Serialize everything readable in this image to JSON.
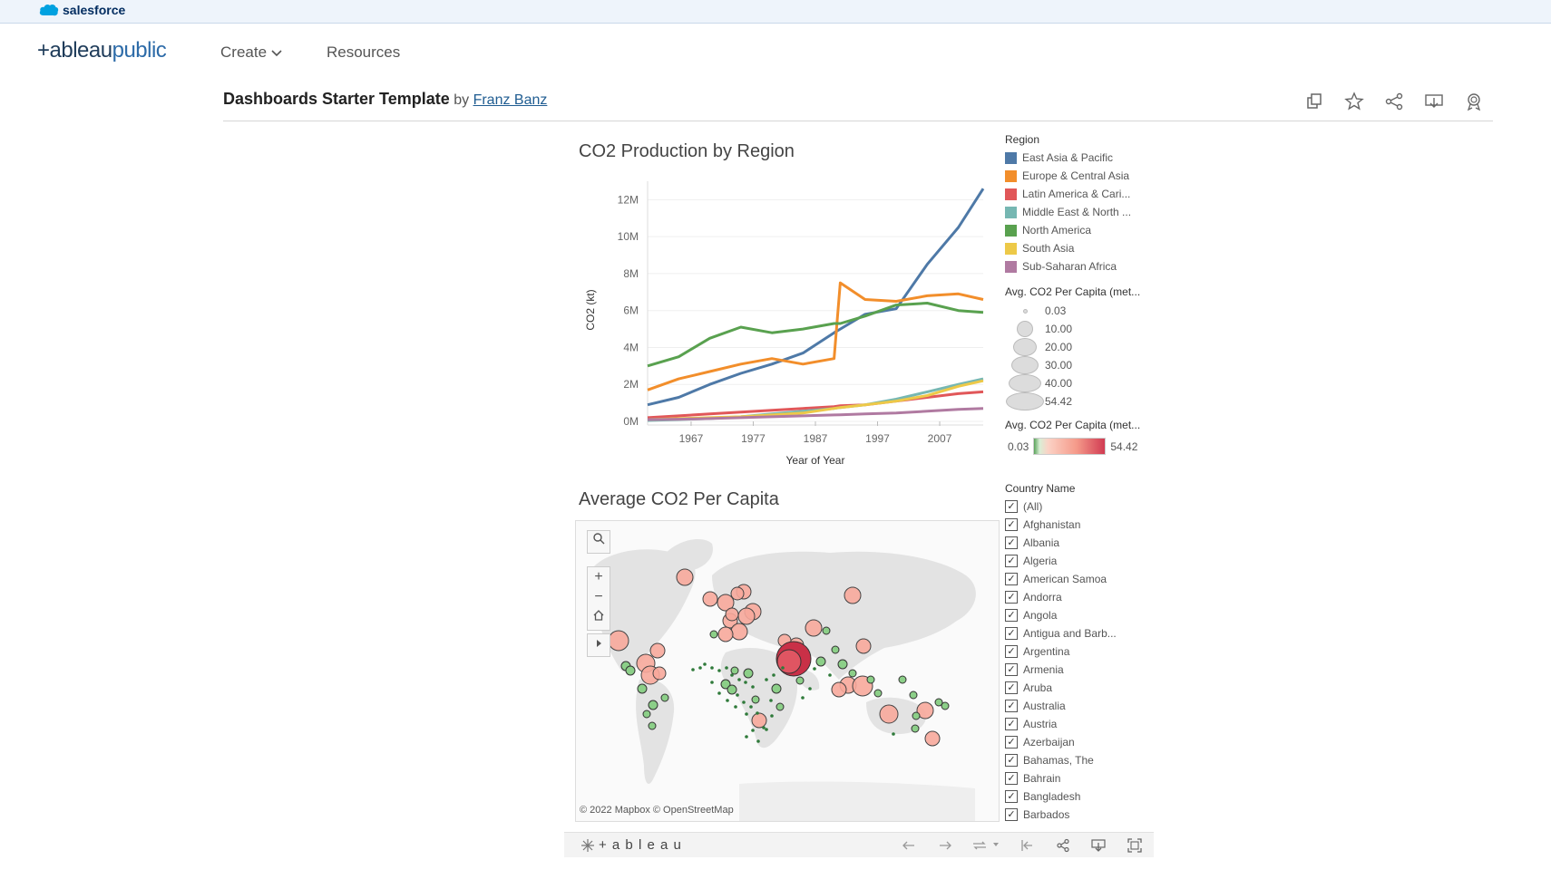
{
  "topbar": {
    "brand": "salesforce"
  },
  "nav": {
    "logo_left": "+ableau",
    "logo_right": "public",
    "create_label": "Create",
    "resources_label": "Resources"
  },
  "viz": {
    "title": "Dashboards Starter Template",
    "by": "by",
    "author": "Franz Banz"
  },
  "chart1": {
    "title": "CO2 Production by Region",
    "ylabel": "CO2 (kt)",
    "xlabel": "Year of Year",
    "yticks": [
      "12M",
      "10M",
      "8M",
      "6M",
      "4M",
      "2M",
      "0M"
    ],
    "xticks": [
      "1967",
      "1977",
      "1987",
      "1997",
      "2007"
    ]
  },
  "chart_data": {
    "type": "line",
    "title": "CO2 Production by Region",
    "xlabel": "Year of Year",
    "ylabel": "CO2 (kt)",
    "ylim": [
      0,
      13000000
    ],
    "x": [
      1960,
      1965,
      1970,
      1975,
      1980,
      1985,
      1990,
      1991,
      1995,
      2000,
      2005,
      2010,
      2014
    ],
    "series": [
      {
        "name": "East Asia & Pacific",
        "color": "#4e79a7",
        "values": [
          900000,
          1300000,
          2000000,
          2600000,
          3100000,
          3700000,
          4800000,
          5000000,
          5800000,
          6100000,
          8500000,
          10500000,
          12600000
        ]
      },
      {
        "name": "Europe & Central Asia",
        "color": "#f28e2b",
        "values": [
          1700000,
          2300000,
          2700000,
          3100000,
          3400000,
          3100000,
          3400000,
          7500000,
          6600000,
          6500000,
          6800000,
          6900000,
          6600000
        ]
      },
      {
        "name": "Latin America & Cari...",
        "color": "#e15759",
        "values": [
          200000,
          300000,
          400000,
          500000,
          600000,
          700000,
          800000,
          850000,
          900000,
          1100000,
          1300000,
          1500000,
          1600000
        ]
      },
      {
        "name": "Middle East & North ...",
        "color": "#76b7b2",
        "values": [
          50000,
          100000,
          150000,
          250000,
          400000,
          550000,
          700000,
          750000,
          900000,
          1200000,
          1600000,
          2000000,
          2300000
        ]
      },
      {
        "name": "North America",
        "color": "#59a14f",
        "values": [
          3000000,
          3500000,
          4500000,
          5100000,
          4800000,
          5000000,
          5300000,
          5300000,
          5700000,
          6300000,
          6400000,
          6000000,
          5900000
        ]
      },
      {
        "name": "South Asia",
        "color": "#edc948",
        "values": [
          100000,
          150000,
          200000,
          250000,
          350000,
          450000,
          700000,
          750000,
          900000,
          1100000,
          1400000,
          1900000,
          2200000
        ]
      },
      {
        "name": "Sub-Saharan Africa",
        "color": "#b07aa1",
        "values": [
          100000,
          120000,
          150000,
          200000,
          250000,
          300000,
          350000,
          360000,
          400000,
          450000,
          550000,
          650000,
          700000
        ]
      }
    ]
  },
  "legend": {
    "region_title": "Region",
    "regions": [
      {
        "label": "East Asia & Pacific",
        "color": "#4e79a7"
      },
      {
        "label": "Europe & Central Asia",
        "color": "#f28e2b"
      },
      {
        "label": "Latin America & Cari...",
        "color": "#e15759"
      },
      {
        "label": "Middle East & North ...",
        "color": "#76b7b2"
      },
      {
        "label": "North America",
        "color": "#59a14f"
      },
      {
        "label": "South Asia",
        "color": "#edc948"
      },
      {
        "label": "Sub-Saharan Africa",
        "color": "#b07aa1"
      }
    ],
    "size_title": "Avg. CO2 Per Capita (met...",
    "sizes": [
      "0.03",
      "10.00",
      "20.00",
      "30.00",
      "40.00",
      "54.42"
    ],
    "color_title": "Avg. CO2 Per Capita (met...",
    "color_min": "0.03",
    "color_max": "54.42"
  },
  "map": {
    "title": "Average CO2 Per Capita",
    "attribution": "© 2022 Mapbox © OpenStreetMap"
  },
  "filter": {
    "title": "Country Name",
    "items": [
      "(All)",
      "Afghanistan",
      "Albania",
      "Algeria",
      "American Samoa",
      "Andorra",
      "Angola",
      "Antigua and Barb...",
      "Argentina",
      "Armenia",
      "Aruba",
      "Australia",
      "Austria",
      "Azerbaijan",
      "Bahamas, The",
      "Bahrain",
      "Bangladesh",
      "Barbados"
    ]
  },
  "footer": {
    "brand": "+ a b l e a u"
  }
}
